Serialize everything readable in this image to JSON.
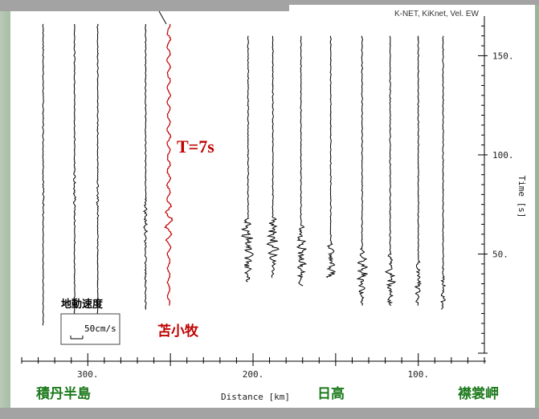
{
  "chart_data": {
    "type": "line",
    "title": "K-NET, KiKnet, Vel. EW",
    "xlabel": "Distance [km]",
    "ylabel": "Time [s]",
    "x_reversed": true,
    "xlim": [
      340,
      60
    ],
    "ylim": [
      0,
      170
    ],
    "x_ticks_major": [
      300,
      200,
      100
    ],
    "x_tick_labels": [
      "300.",
      "200.",
      "100."
    ],
    "y_ticks_major": [
      50,
      100,
      150
    ],
    "y_tick_labels": [
      "50.",
      "100.",
      "150."
    ],
    "series": [
      {
        "distance": 327,
        "start": 14,
        "end": 166,
        "arrival": 85,
        "amplitude": 1.2,
        "color": "#000000"
      },
      {
        "distance": 308,
        "start": 16,
        "end": 166,
        "arrival": 85,
        "amplitude": 1.6,
        "color": "#000000"
      },
      {
        "distance": 294,
        "start": 18,
        "end": 166,
        "arrival": 82,
        "amplitude": 1.4,
        "color": "#000000"
      },
      {
        "distance": 265,
        "start": 22,
        "end": 166,
        "arrival": 72,
        "amplitude": 2.5,
        "color": "#000000"
      },
      {
        "distance": 251,
        "start": 24,
        "end": 166,
        "arrival": 70,
        "amplitude": 6.0,
        "color": "#c00000",
        "highlight": true
      },
      {
        "distance": 203,
        "start": 36,
        "end": 160,
        "arrival": 60,
        "amplitude": 9.0,
        "color": "#000000"
      },
      {
        "distance": 188,
        "start": 38,
        "end": 160,
        "arrival": 60,
        "amplitude": 7.5,
        "color": "#000000"
      },
      {
        "distance": 171,
        "start": 34,
        "end": 160,
        "arrival": 56,
        "amplitude": 7.0,
        "color": "#000000"
      },
      {
        "distance": 153,
        "start": 38,
        "end": 160,
        "arrival": 48,
        "amplitude": 6.5,
        "color": "#000000"
      },
      {
        "distance": 134,
        "start": 24,
        "end": 160,
        "arrival": 45,
        "amplitude": 6.5,
        "color": "#000000"
      },
      {
        "distance": 117,
        "start": 24,
        "end": 160,
        "arrival": 42,
        "amplitude": 6.0,
        "color": "#000000"
      },
      {
        "distance": 100,
        "start": 24,
        "end": 160,
        "arrival": 38,
        "amplitude": 4.5,
        "color": "#000000"
      },
      {
        "distance": 85,
        "start": 22,
        "end": 160,
        "arrival": 35,
        "amplitude": 3.0,
        "color": "#000000"
      }
    ],
    "annotations": {
      "period": "T=7s",
      "highlight_station": "苫小牧",
      "scale_title": "地動速度",
      "scale_label": "50cm/s",
      "scale_value_cm_s": 50
    },
    "regions": [
      {
        "label": "積丹半島",
        "color": "#1d7a1d"
      },
      {
        "label": "日高",
        "color": "#1d7a1d"
      },
      {
        "label": "襟裳岬",
        "color": "#1d7a1d"
      }
    ]
  }
}
